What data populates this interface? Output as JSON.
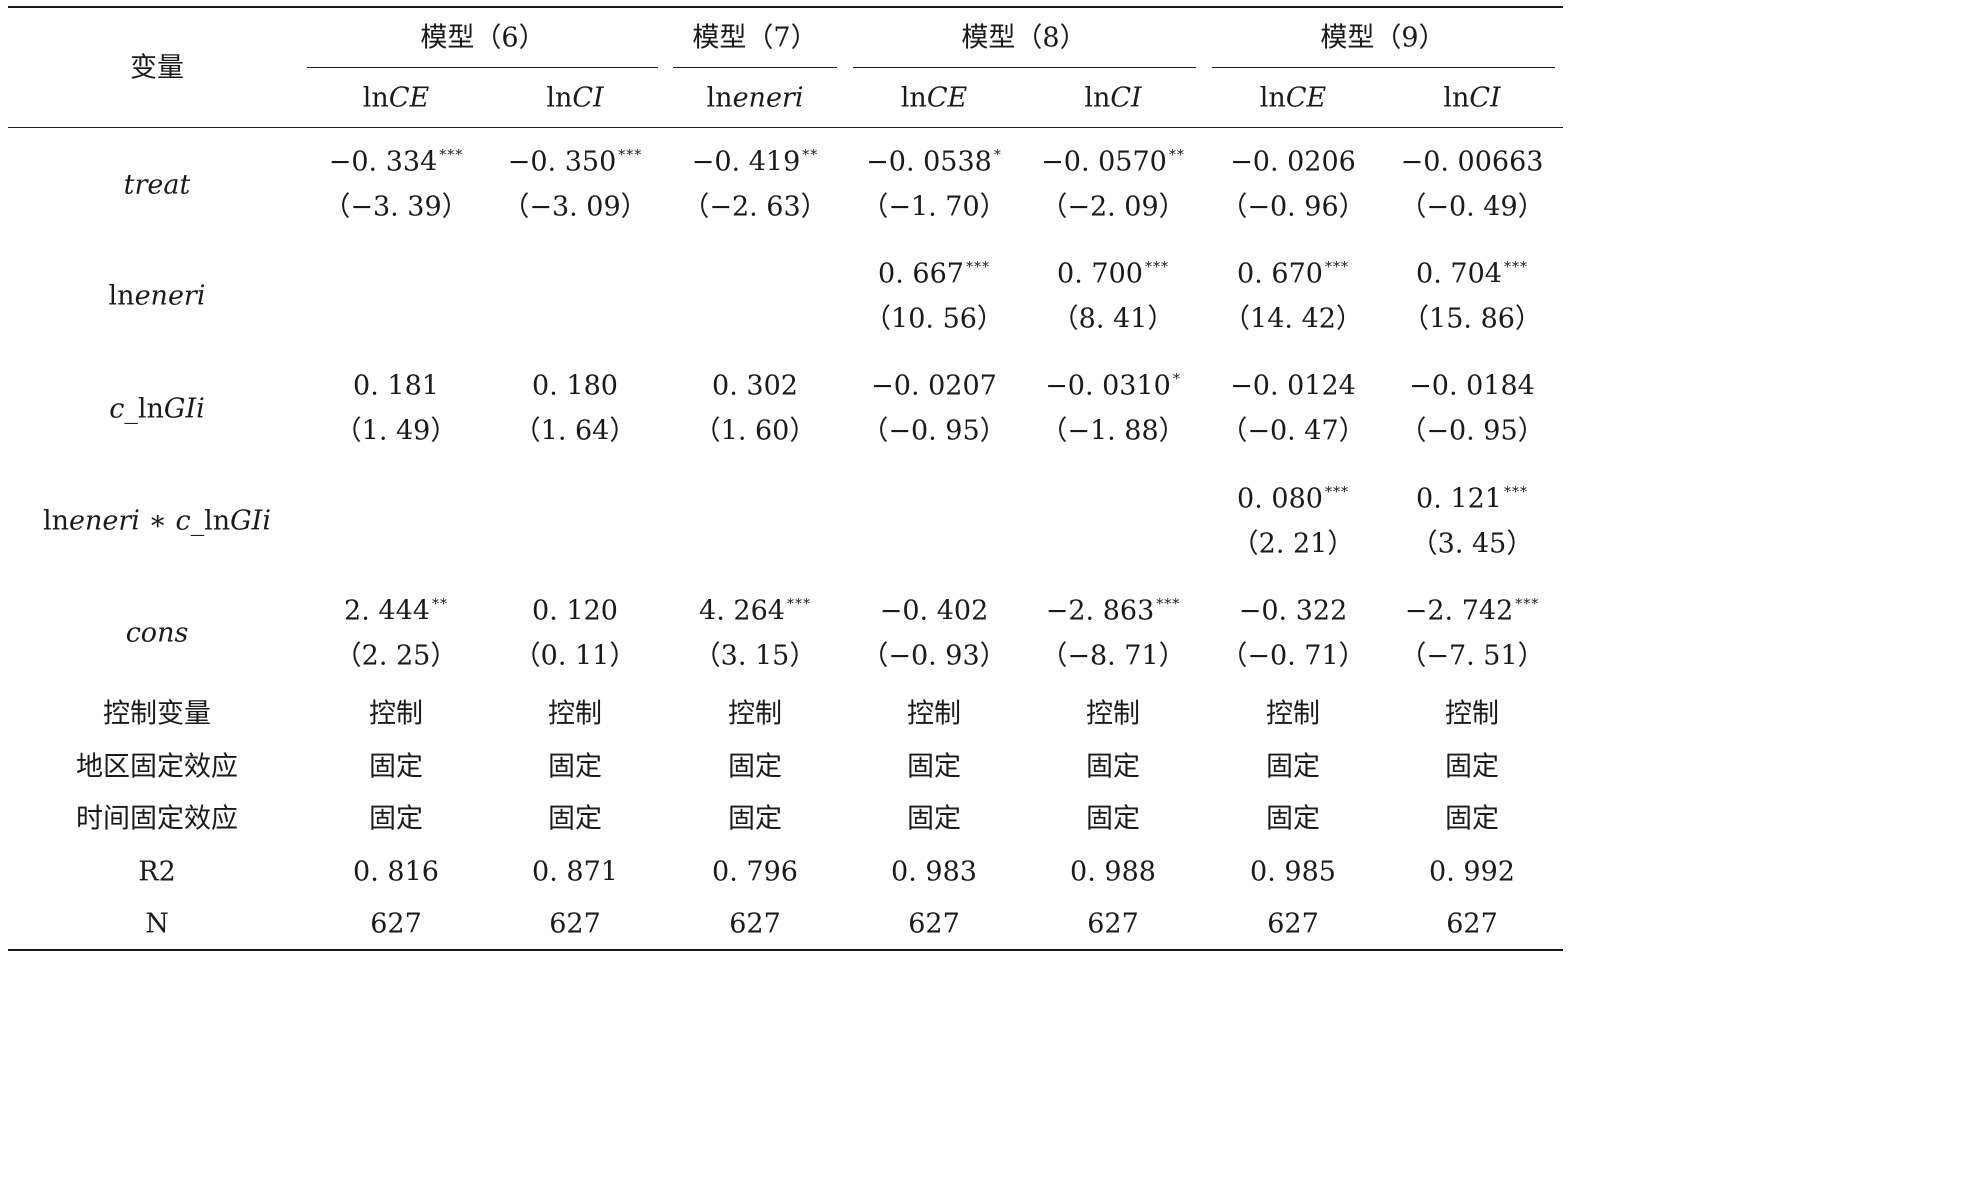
{
  "table": {
    "var_header": "变量",
    "models": [
      "模型（6）",
      "模型（7）",
      "模型（8）",
      "模型（9）"
    ],
    "columns": [
      {
        "prefix": "ln",
        "italic": "CE"
      },
      {
        "prefix": "ln",
        "italic": "CI"
      },
      {
        "prefix": "ln",
        "italic": "eneri"
      },
      {
        "prefix": "ln",
        "italic": "CE"
      },
      {
        "prefix": "ln",
        "italic": "CI"
      },
      {
        "prefix": "ln",
        "italic": "CE"
      },
      {
        "prefix": "ln",
        "italic": "CI"
      }
    ],
    "coef_rows": [
      {
        "label": [
          {
            "t": "treat",
            "i": true
          }
        ],
        "cells": [
          {
            "coef": "−0. 334",
            "stars": "***",
            "t": "（−3. 39）"
          },
          {
            "coef": "−0. 350",
            "stars": "***",
            "t": "（−3. 09）"
          },
          {
            "coef": "−0. 419",
            "stars": "**",
            "t": "（−2. 63）"
          },
          {
            "coef": "−0. 0538",
            "stars": "*",
            "t": "（−1. 70）"
          },
          {
            "coef": "−0. 0570",
            "stars": "**",
            "t": "（−2. 09）"
          },
          {
            "coef": "−0. 0206",
            "stars": "",
            "t": "（−0. 96）"
          },
          {
            "coef": "−0. 00663",
            "stars": "",
            "t": "（−0. 49）"
          }
        ]
      },
      {
        "label": [
          {
            "t": "ln",
            "i": false
          },
          {
            "t": "eneri",
            "i": true
          }
        ],
        "cells": [
          null,
          null,
          null,
          {
            "coef": "0. 667",
            "stars": "***",
            "t": "（10. 56）"
          },
          {
            "coef": "0. 700",
            "stars": "***",
            "t": "（8. 41）"
          },
          {
            "coef": "0. 670",
            "stars": "***",
            "t": "（14. 42）"
          },
          {
            "coef": "0. 704",
            "stars": "***",
            "t": "（15. 86）"
          }
        ]
      },
      {
        "label": [
          {
            "t": "c",
            "i": true
          },
          {
            "t": "_ln",
            "i": false
          },
          {
            "t": "GIi",
            "i": true
          }
        ],
        "cells": [
          {
            "coef": "0. 181",
            "stars": "",
            "t": "（1. 49）"
          },
          {
            "coef": "0. 180",
            "stars": "",
            "t": "（1. 64）"
          },
          {
            "coef": "0. 302",
            "stars": "",
            "t": "（1. 60）"
          },
          {
            "coef": "−0. 0207",
            "stars": "",
            "t": "（−0. 95）"
          },
          {
            "coef": "−0. 0310",
            "stars": "*",
            "t": "（−1. 88）"
          },
          {
            "coef": "−0. 0124",
            "stars": "",
            "t": "（−0. 47）"
          },
          {
            "coef": "−0. 0184",
            "stars": "",
            "t": "（−0. 95）"
          }
        ]
      },
      {
        "label": [
          {
            "t": "ln",
            "i": false
          },
          {
            "t": "eneri",
            "i": true
          },
          {
            "t": " ∗ ",
            "i": false
          },
          {
            "t": "c",
            "i": true
          },
          {
            "t": "_ln",
            "i": false
          },
          {
            "t": "GIi",
            "i": true
          }
        ],
        "cells": [
          null,
          null,
          null,
          null,
          null,
          {
            "coef": "0. 080",
            "stars": "***",
            "t": "（2. 21）"
          },
          {
            "coef": "0. 121",
            "stars": "***",
            "t": "（3. 45）"
          }
        ]
      },
      {
        "label": [
          {
            "t": "cons",
            "i": true
          }
        ],
        "cells": [
          {
            "coef": "2. 444",
            "stars": "**",
            "t": "（2. 25）"
          },
          {
            "coef": "0. 120",
            "stars": "",
            "t": "（0. 11）"
          },
          {
            "coef": "4. 264",
            "stars": "***",
            "t": "（3. 15）"
          },
          {
            "coef": "−0. 402",
            "stars": "",
            "t": "（−0. 93）"
          },
          {
            "coef": "−2. 863",
            "stars": "***",
            "t": "（−8. 71）"
          },
          {
            "coef": "−0. 322",
            "stars": "",
            "t": "（−0. 71）"
          },
          {
            "coef": "−2. 742",
            "stars": "***",
            "t": "（−7. 51）"
          }
        ]
      }
    ],
    "text_rows": [
      {
        "label": "控制变量",
        "values": [
          "控制",
          "控制",
          "控制",
          "控制",
          "控制",
          "控制",
          "控制"
        ]
      },
      {
        "label": "地区固定效应",
        "values": [
          "固定",
          "固定",
          "固定",
          "固定",
          "固定",
          "固定",
          "固定"
        ]
      },
      {
        "label": "时间固定效应",
        "values": [
          "固定",
          "固定",
          "固定",
          "固定",
          "固定",
          "固定",
          "固定"
        ]
      },
      {
        "label": "R",
        "sup": "2",
        "values": [
          "0. 816",
          "0. 871",
          "0. 796",
          "0. 983",
          "0. 988",
          "0. 985",
          "0. 992"
        ]
      },
      {
        "label": "N",
        "values": [
          "627",
          "627",
          "627",
          "627",
          "627",
          "627",
          "627"
        ]
      }
    ]
  }
}
